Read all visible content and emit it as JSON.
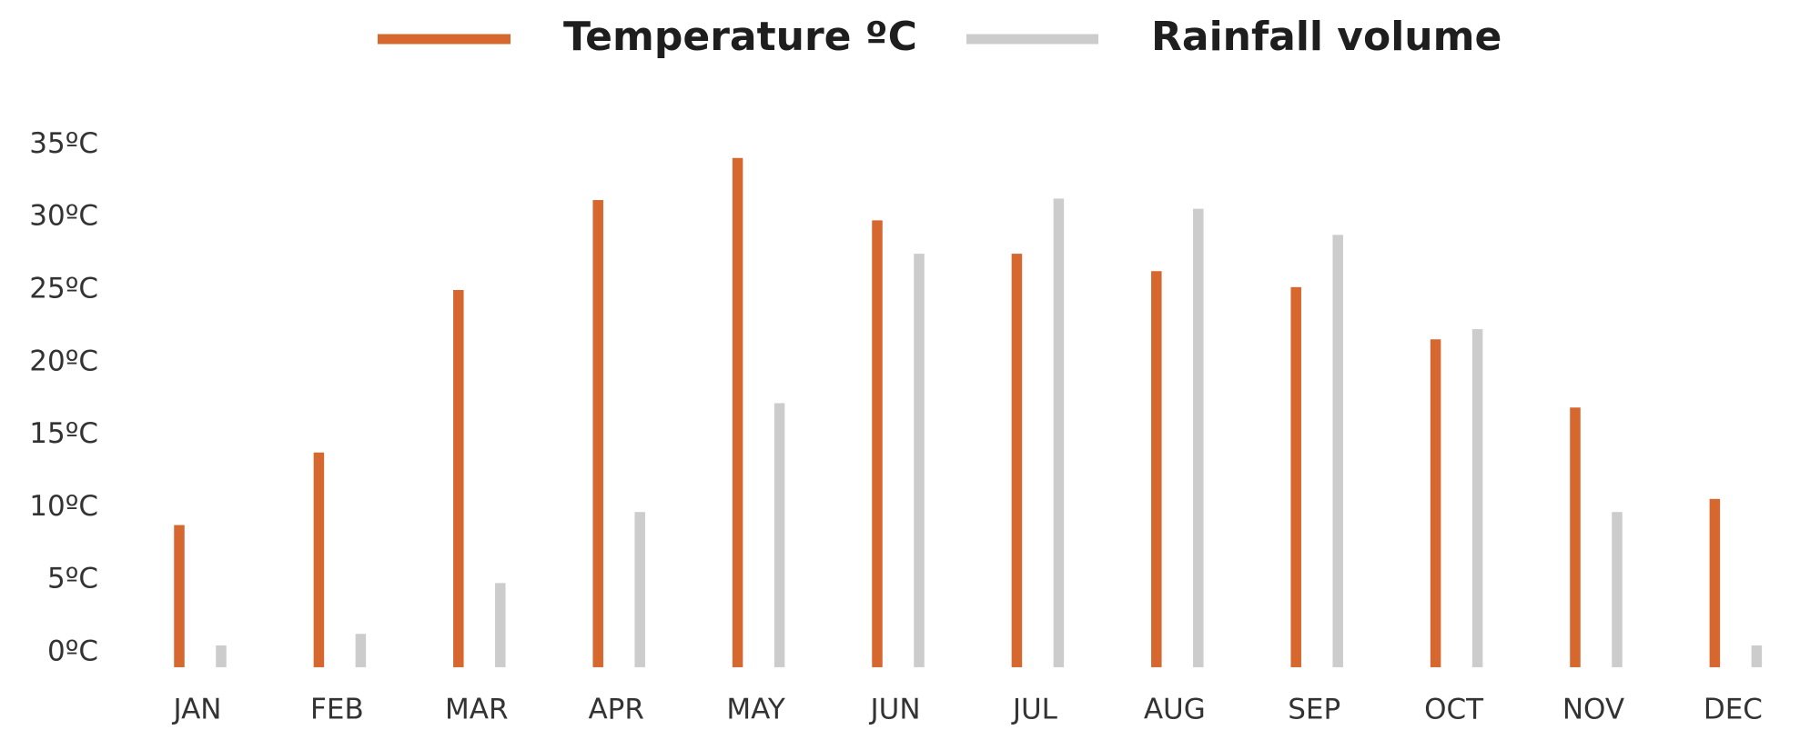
{
  "chart_data": {
    "type": "bar",
    "categories": [
      "JAN",
      "FEB",
      "MAR",
      "APR",
      "MAY",
      "JUN",
      "JUL",
      "AUG",
      "SEP",
      "OCT",
      "NOV",
      "DEC"
    ],
    "series": [
      {
        "name": "Temperature ºC",
        "color": "#d5672f",
        "values": [
          8.8,
          13.8,
          25.0,
          31.2,
          34.1,
          29.8,
          27.5,
          26.3,
          25.2,
          21.6,
          16.9,
          10.6
        ]
      },
      {
        "name": "Rainfall volume",
        "color": "#cccccc",
        "values": [
          0.5,
          1.3,
          4.8,
          9.7,
          17.2,
          27.5,
          31.3,
          30.6,
          28.8,
          22.3,
          9.7,
          0.5
        ]
      }
    ],
    "ylim": [
      -1,
      35
    ],
    "yticks": [
      {
        "value": 0,
        "label": "0ºC"
      },
      {
        "value": 5,
        "label": "5ºC"
      },
      {
        "value": 10,
        "label": "10ºC"
      },
      {
        "value": 15,
        "label": "15ºC"
      },
      {
        "value": 20,
        "label": "20ºC"
      },
      {
        "value": 25,
        "label": "25ºC"
      },
      {
        "value": 30,
        "label": "30ºC"
      },
      {
        "value": 35,
        "label": "35ºC"
      }
    ],
    "grid": false,
    "legend": "top"
  }
}
